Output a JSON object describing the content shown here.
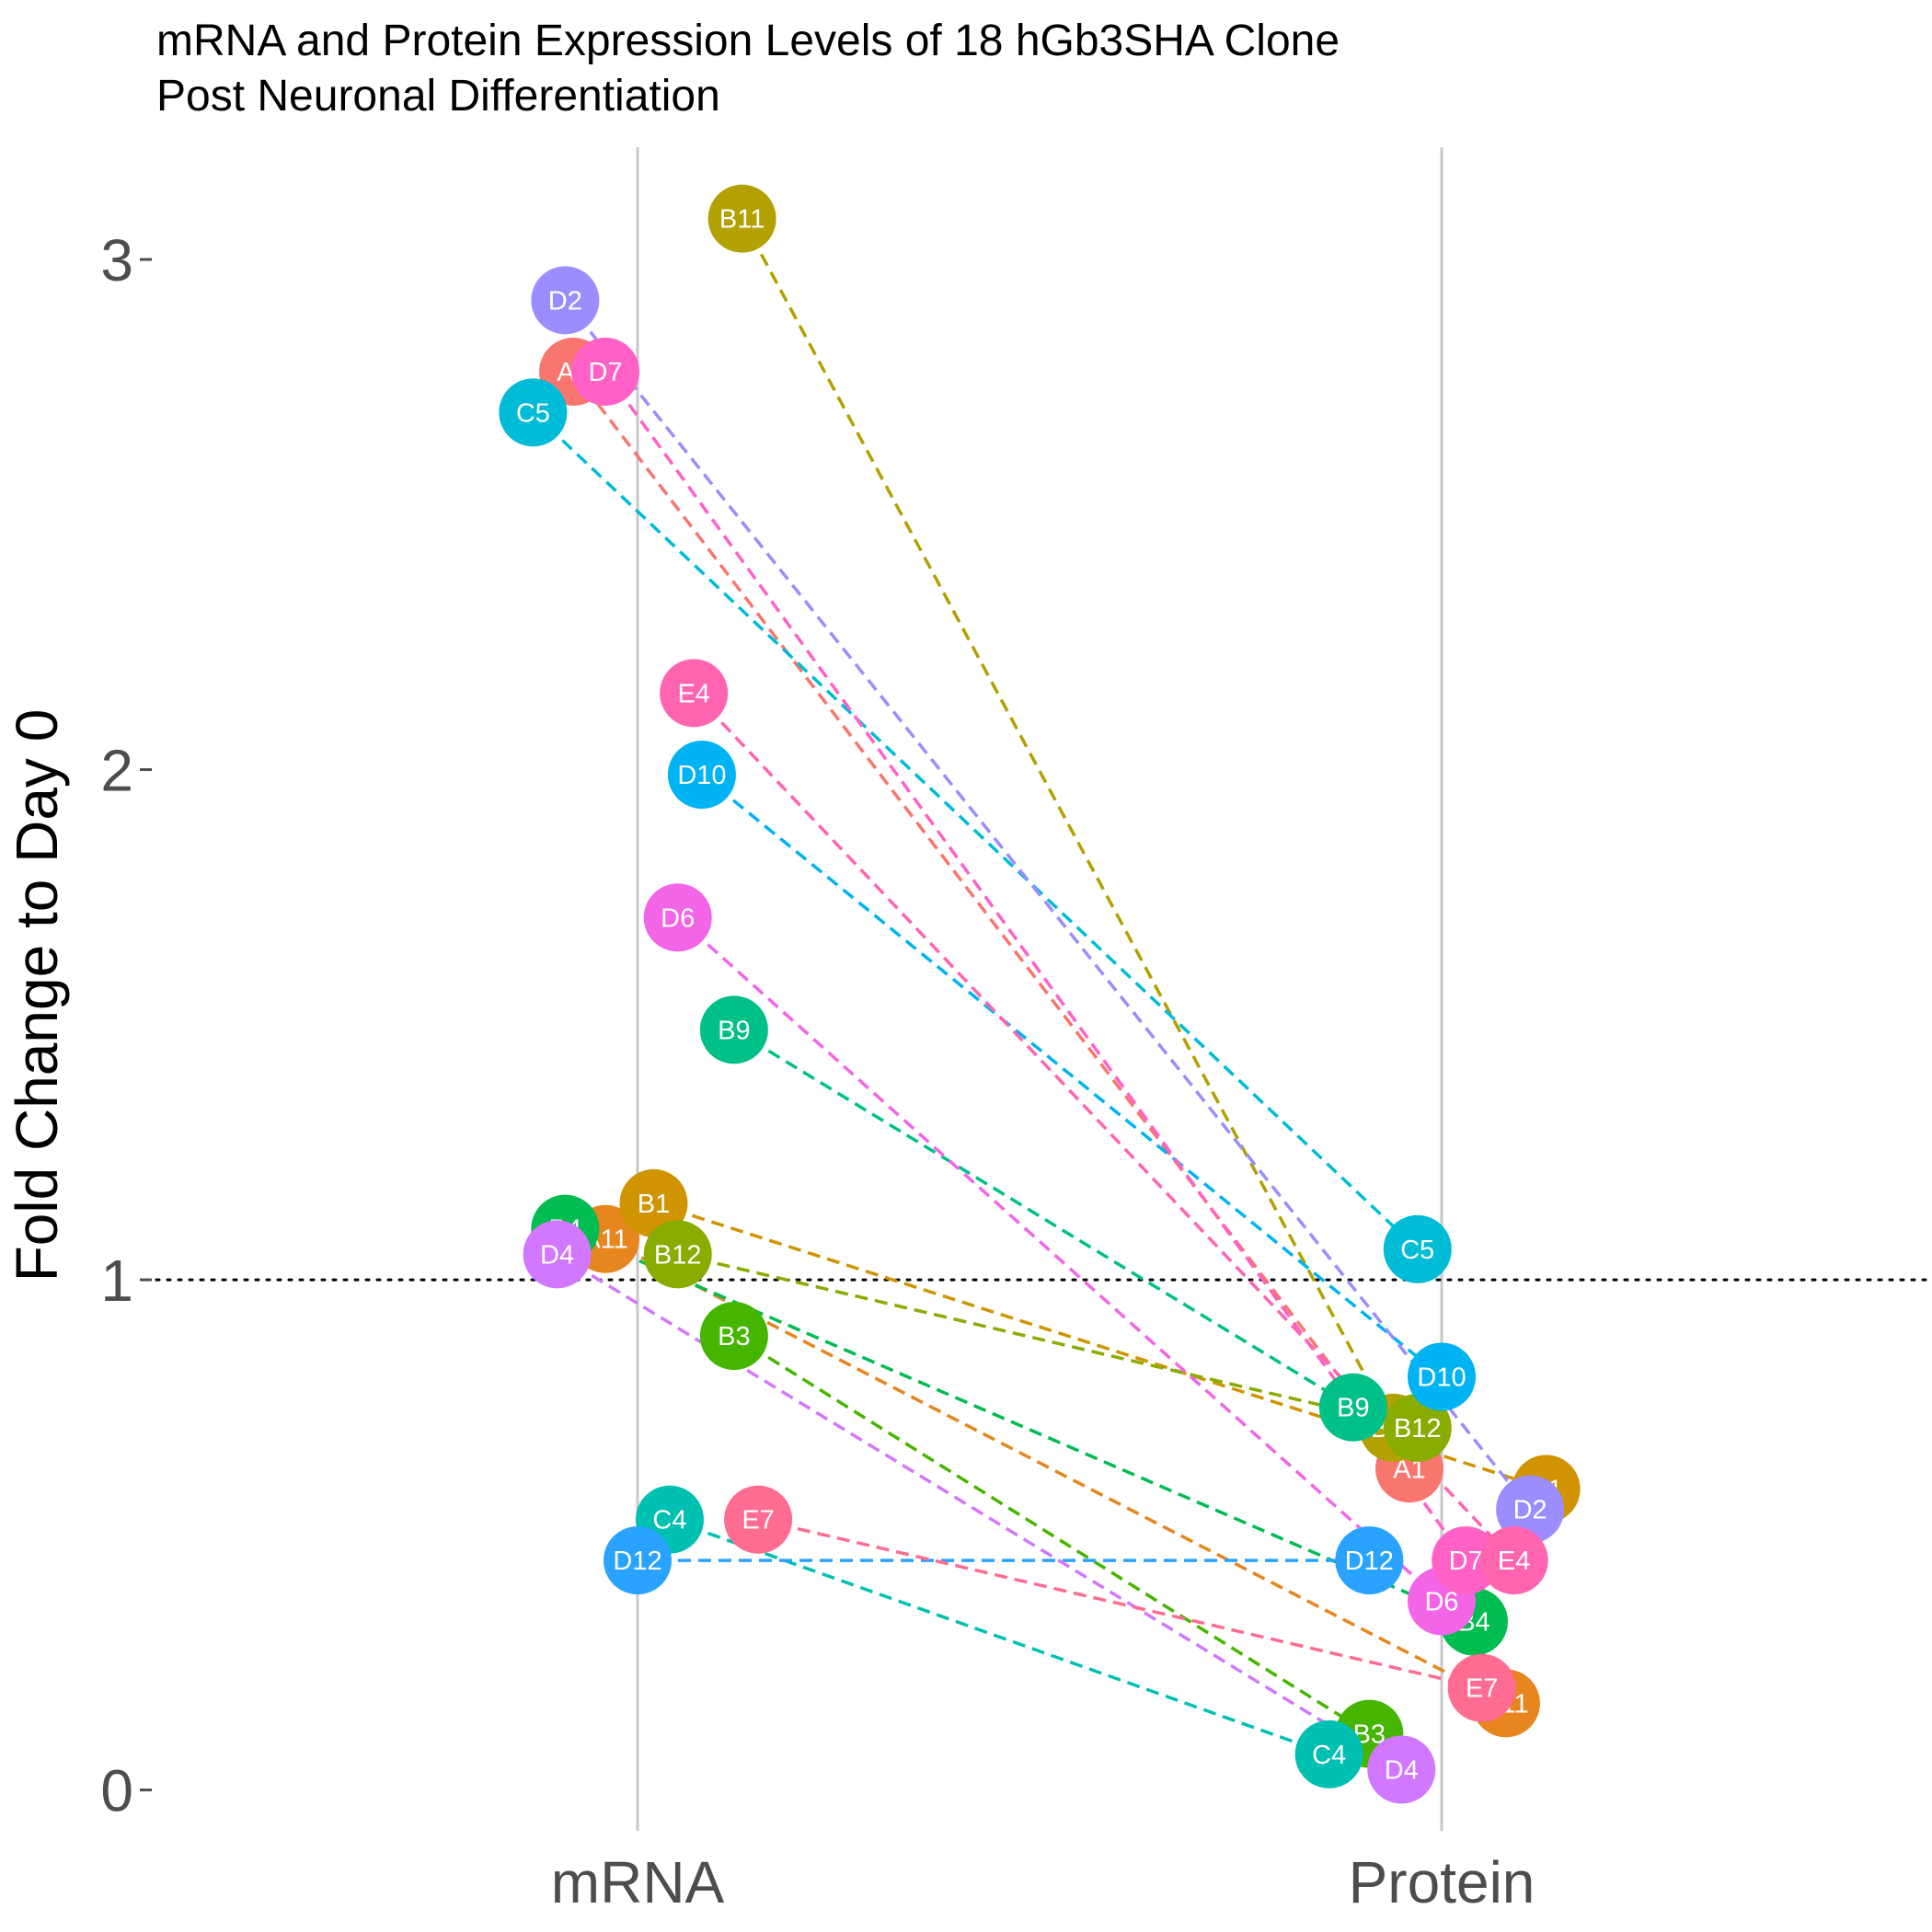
{
  "chart_data": {
    "type": "scatter",
    "title": "mRNA and Protein Expression Levels of 18 hGb3SHA Clone\nPost Neuronal Differentiation",
    "ylabel": "Fold Change to Day 0",
    "xlabel": "",
    "categories": [
      "mRNA",
      "Protein"
    ],
    "ylim": [
      -0.08,
      3.22
    ],
    "yticks": [
      0,
      1,
      2,
      3
    ],
    "reference_line": 1,
    "grid": "vertical major only",
    "legend": "none",
    "series": [
      {
        "name": "A1",
        "color": "#F8766D",
        "mrna": 2.78,
        "protein": 0.63,
        "jm": -0.08,
        "jp": -0.04
      },
      {
        "name": "A11",
        "color": "#E7851E",
        "mrna": 1.08,
        "protein": 0.17,
        "jm": -0.04,
        "jp": 0.08
      },
      {
        "name": "B1",
        "color": "#D09400",
        "mrna": 1.15,
        "protein": 0.59,
        "jm": 0.02,
        "jp": 0.13
      },
      {
        "name": "B11",
        "color": "#B2A100",
        "mrna": 3.08,
        "protein": 0.71,
        "jm": 0.13,
        "jp": -0.06
      },
      {
        "name": "B12",
        "color": "#89AC00",
        "mrna": 1.05,
        "protein": 0.71,
        "jm": 0.05,
        "jp": -0.03
      },
      {
        "name": "B3",
        "color": "#45B500",
        "mrna": 0.89,
        "protein": 0.11,
        "jm": 0.12,
        "jp": -0.09
      },
      {
        "name": "B4",
        "color": "#00BC51",
        "mrna": 1.1,
        "protein": 0.33,
        "jm": -0.09,
        "jp": 0.04
      },
      {
        "name": "B9",
        "color": "#00C087",
        "mrna": 1.49,
        "protein": 0.75,
        "jm": 0.12,
        "jp": -0.11
      },
      {
        "name": "C4",
        "color": "#00C0B2",
        "mrna": 0.53,
        "protein": 0.07,
        "jm": 0.04,
        "jp": -0.14
      },
      {
        "name": "C5",
        "color": "#00BCD6",
        "mrna": 2.7,
        "protein": 1.06,
        "jm": -0.13,
        "jp": -0.03
      },
      {
        "name": "D10",
        "color": "#00B3F2",
        "mrna": 1.99,
        "protein": 0.81,
        "jm": 0.08,
        "jp": 0.0
      },
      {
        "name": "D12",
        "color": "#29A3FF",
        "mrna": 0.45,
        "protein": 0.45,
        "jm": 0.0,
        "jp": -0.09
      },
      {
        "name": "D2",
        "color": "#9C8DFF",
        "mrna": 2.92,
        "protein": 0.55,
        "jm": -0.09,
        "jp": 0.11
      },
      {
        "name": "D4",
        "color": "#D277FF",
        "mrna": 1.05,
        "protein": 0.04,
        "jm": -0.1,
        "jp": -0.05
      },
      {
        "name": "D6",
        "color": "#F265E7",
        "mrna": 1.71,
        "protein": 0.37,
        "jm": 0.05,
        "jp": 0.0
      },
      {
        "name": "D7",
        "color": "#FF61C7",
        "mrna": 2.78,
        "protein": 0.45,
        "jm": -0.04,
        "jp": 0.03
      },
      {
        "name": "E4",
        "color": "#FF64B0",
        "mrna": 2.15,
        "protein": 0.45,
        "jm": 0.07,
        "jp": 0.09
      },
      {
        "name": "E7",
        "color": "#FF6C91",
        "mrna": 0.53,
        "protein": 0.2,
        "jm": 0.15,
        "jp": 0.05
      }
    ]
  }
}
